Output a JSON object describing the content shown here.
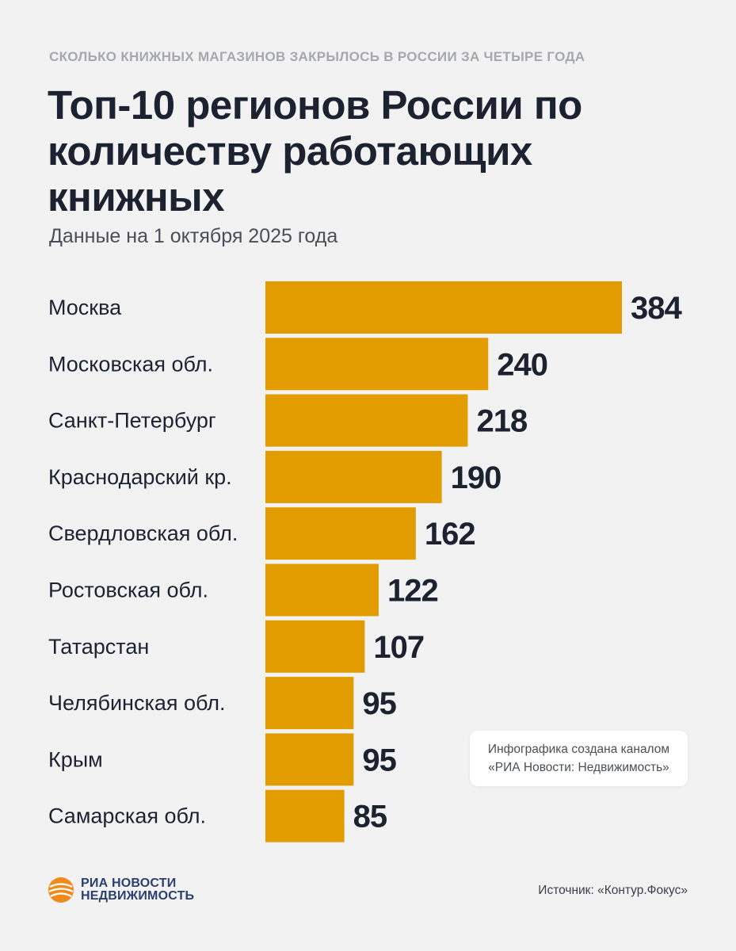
{
  "header": {
    "eyebrow": "СКОЛЬКО КНИЖНЫХ МАГАЗИНОВ ЗАКРЫЛОСЬ В РОССИИ ЗА ЧЕТЫРЕ ГОДА",
    "title": "Топ-10 регионов России по количеству работающих книжных",
    "subtitle": "Данные на 1 октября 2025 года"
  },
  "chart_data": {
    "type": "bar",
    "orientation": "horizontal",
    "title": "Топ-10 регионов России по количеству работающих книжных",
    "categories": [
      "Москва",
      "Московская обл.",
      "Санкт-Петербург",
      "Краснодарский кр.",
      "Свердловская обл.",
      "Ростовская обл.",
      "Татарстан",
      "Челябинская обл.",
      "Крым",
      "Самарская обл."
    ],
    "values": [
      384,
      240,
      218,
      190,
      162,
      122,
      107,
      95,
      95,
      85
    ],
    "xlabel": "",
    "ylabel": "",
    "xlim": [
      0,
      384
    ],
    "grid": false,
    "bar_color": "#e39c00"
  },
  "note": {
    "line1": "Инфографика создана каналом",
    "line2": "«РИА Новости: Недвижимость»"
  },
  "footer": {
    "logo_line1": "РИА НОВОСТИ",
    "logo_line2": "НЕДВИЖИМОСТЬ",
    "logo_icon": "ria-globe-icon",
    "source": "Источник: «Контур.Фокус»"
  },
  "colors": {
    "background": "#f2f2f3",
    "accent": "#e39c00",
    "text": "#1d2230",
    "muted": "#a6a8ad",
    "logo_orange": "#f08a1c",
    "logo_blue": "#2a3f6e"
  }
}
